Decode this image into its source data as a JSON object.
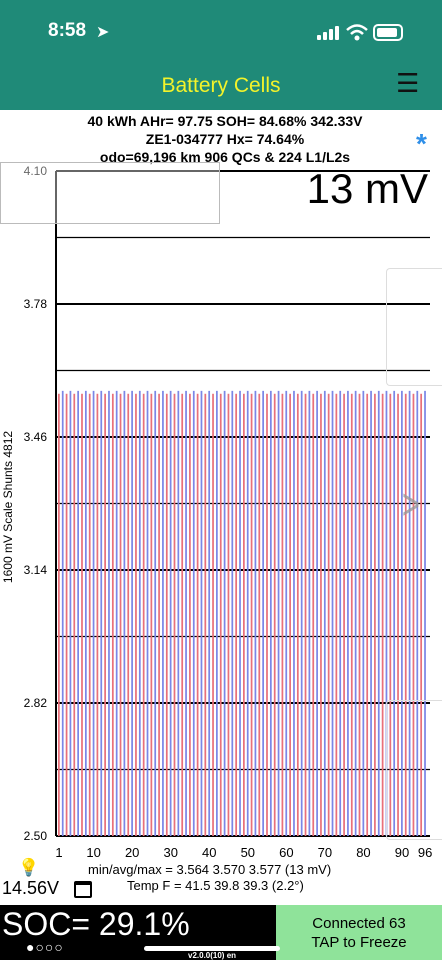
{
  "status_bar": {
    "time": "8:58"
  },
  "app": {
    "title": "Battery Cells"
  },
  "info": {
    "row1": "40 kWh  AHr= 97.75  SOH= 84.68%   342.33V",
    "row2": "ZE1-034777   Hx= 74.64%",
    "row3": "odo=69,196 km 906 QCs & 224 L1/L2s"
  },
  "delta_label": "13 mV",
  "y_axis_label": "1600 mV Scale   Shunts 4812",
  "stats": {
    "line1": "min/avg/max = 3.564 3.570 3.577  (13 mV)",
    "line2": "Temp F = 41.5  39.8  39.3  (2.2°)"
  },
  "voltage": "14.56V",
  "soc": "SOC= 29.1%",
  "page_dots": "●○○○",
  "connection": {
    "line1": "Connected 63",
    "line2": "TAP to Freeze"
  },
  "version": "v2.0.0(10) en",
  "colors": {
    "header": "#1f8a78",
    "title": "#f3f32a",
    "bar_red": "#e8707a",
    "bar_blue": "#7b86e6",
    "connect_bg": "#8fe39a",
    "star": "#2f8fe8"
  },
  "chart_data": {
    "type": "bar",
    "ylim": [
      2.5,
      4.1
    ],
    "yticks": [
      "4.10",
      "3.78",
      "3.46",
      "3.14",
      "2.82",
      "2.50"
    ],
    "xticks": [
      "1",
      "10",
      "20",
      "30",
      "40",
      "50",
      "60",
      "70",
      "80",
      "90",
      "96"
    ],
    "cell_count": 96,
    "min": 3.564,
    "avg": 3.57,
    "max": 3.577
  }
}
